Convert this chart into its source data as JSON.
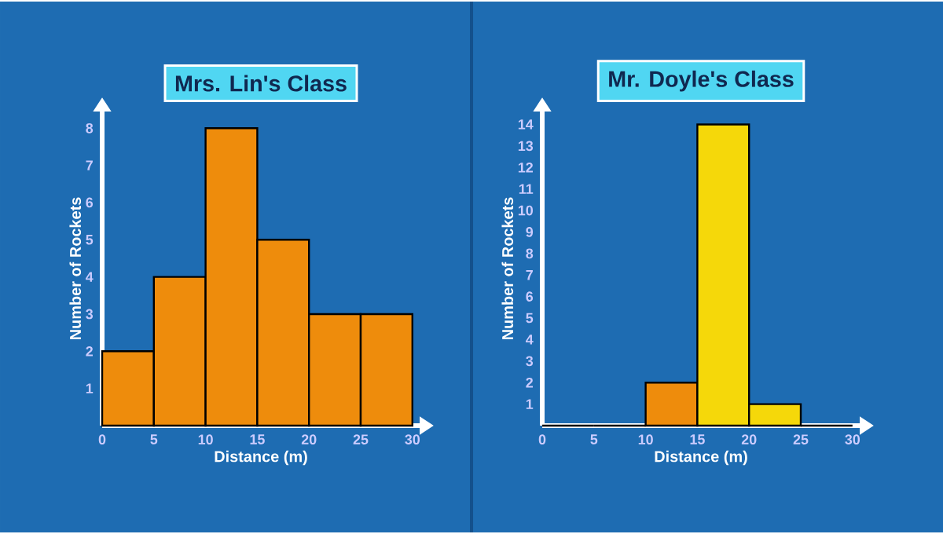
{
  "chart_data": [
    {
      "type": "histogram",
      "title": "Mrs. Lin's Class",
      "xlabel": "Distance (m)",
      "ylabel": "Number of Rockets",
      "bins": [
        0,
        5,
        10,
        15,
        20,
        25,
        30
      ],
      "values": [
        2,
        4,
        8,
        5,
        3,
        3
      ],
      "colors": [
        "#ee8c0c",
        "#ee8c0c",
        "#ee8c0c",
        "#ee8c0c",
        "#ee8c0c",
        "#ee8c0c"
      ],
      "xlim": [
        0,
        30.7
      ],
      "ylim": [
        0,
        8.45
      ],
      "xticks": [
        0,
        5,
        10,
        15,
        20,
        25,
        30
      ],
      "yticks": [
        1,
        2,
        3,
        4,
        5,
        6,
        7,
        8
      ]
    },
    {
      "type": "histogram",
      "title": "Mr. Doyle's Class",
      "xlabel": "Distance (m)",
      "ylabel": "Number of Rockets",
      "bins": [
        0,
        5,
        10,
        15,
        20,
        25,
        30
      ],
      "values": [
        0,
        0,
        2,
        14,
        1,
        0
      ],
      "colors": [
        "#ee8c0c",
        "#ee8c0c",
        "#ee8c0c",
        "#f5d80a",
        "#f5d80a",
        "#f5d80a"
      ],
      "xlim": [
        0,
        30.7
      ],
      "ylim": [
        0,
        14.6
      ],
      "xticks": [
        0,
        5,
        10,
        15,
        20,
        25,
        30
      ],
      "yticks": [
        1,
        2,
        3,
        4,
        5,
        6,
        7,
        8,
        9,
        10,
        11,
        12,
        13,
        14
      ]
    }
  ]
}
